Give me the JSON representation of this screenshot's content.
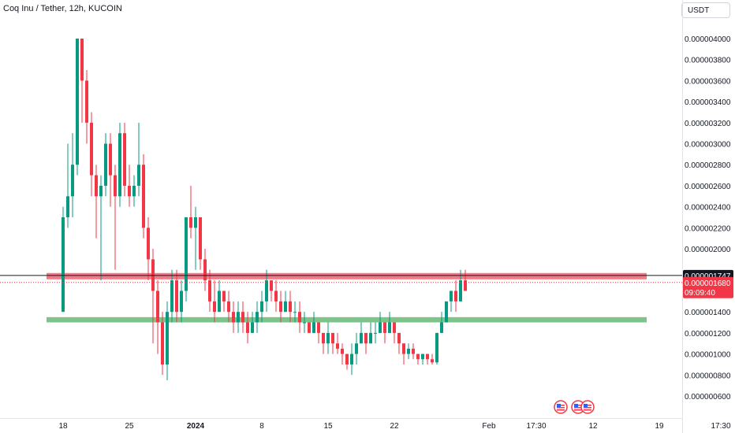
{
  "header": {
    "title": "Coq Inu / Tether, 12h, KUCOIN",
    "currency_label": "USDT"
  },
  "colors": {
    "up": "#089981",
    "down": "#f23645",
    "resistance_zone": "#f07a86",
    "support_zone": "#7cc48a",
    "last_price_line": "#131722",
    "current_price": "#f23645"
  },
  "chart_data": {
    "type": "candlestick",
    "title": "Coq Inu / Tether, 12h, KUCOIN",
    "xlabel": "",
    "ylabel": "",
    "ylim": [
      5e-07,
      4.25e-06
    ],
    "y_ticks": [
      "0.000004000",
      "0.000003800",
      "0.000003600",
      "0.000003400",
      "0.000003200",
      "0.000003000",
      "0.000002800",
      "0.000002600",
      "0.000002400",
      "0.000002200",
      "0.000002000",
      "0.000001400",
      "0.000001200",
      "0.000001000",
      "0.000000800",
      "0.000000600"
    ],
    "x_ticks": [
      {
        "label": "18",
        "index": 0
      },
      {
        "label": "25",
        "index": 14
      },
      {
        "label": "2024",
        "index": 28,
        "bold": true
      },
      {
        "label": "8",
        "index": 42
      },
      {
        "label": "15",
        "index": 56
      },
      {
        "label": "22",
        "index": 70
      },
      {
        "label": "Feb",
        "index": 90
      },
      {
        "label": "17:30",
        "index": 100
      },
      {
        "label": "12",
        "index": 112
      },
      {
        "label": "19",
        "index": 126
      },
      {
        "label": "17:30",
        "index": 139
      }
    ],
    "grid": false,
    "candles": [
      [
        1.4e-06,
        2.3e-06,
        2.4e-06,
        1.4e-06
      ],
      [
        2.3e-06,
        2.5e-06,
        3e-06,
        2.2e-06
      ],
      [
        2.5e-06,
        2.8e-06,
        3.1e-06,
        2.3e-06
      ],
      [
        2.8e-06,
        4e-06,
        4e-06,
        2.7e-06
      ],
      [
        4e-06,
        3.6e-06,
        4e-06,
        3.2e-06
      ],
      [
        3.6e-06,
        3.2e-06,
        3.7e-06,
        3e-06
      ],
      [
        3.2e-06,
        2.7e-06,
        3.3e-06,
        2.5e-06
      ],
      [
        2.7e-06,
        2.5e-06,
        2.8e-06,
        2.1e-06
      ],
      [
        2.5e-06,
        2.6e-06,
        2.7e-06,
        1.7e-06
      ],
      [
        2.6e-06,
        3e-06,
        3.1e-06,
        2.5e-06
      ],
      [
        3e-06,
        2.7e-06,
        3.1e-06,
        2.4e-06
      ],
      [
        2.7e-06,
        2.5e-06,
        2.8e-06,
        1.8e-06
      ],
      [
        2.5e-06,
        3.1e-06,
        3.2e-06,
        2.4e-06
      ],
      [
        3.1e-06,
        2.6e-06,
        3.2e-06,
        2.5e-06
      ],
      [
        2.6e-06,
        2.5e-06,
        2.8e-06,
        2.4e-06
      ],
      [
        2.5e-06,
        2.6e-06,
        2.7e-06,
        2.4e-06
      ],
      [
        2.6e-06,
        2.8e-06,
        3.2e-06,
        2.5e-06
      ],
      [
        2.8e-06,
        2.2e-06,
        2.9e-06,
        2.1e-06
      ],
      [
        2.2e-06,
        1.9e-06,
        2.3e-06,
        1.7e-06
      ],
      [
        1.9e-06,
        1.6e-06,
        2e-06,
        1.1e-06
      ],
      [
        1.6e-06,
        1.3e-06,
        1.7e-06,
        1e-06
      ],
      [
        1.3e-06,
        9e-07,
        1.4e-06,
        8e-07
      ],
      [
        9e-07,
        1.4e-06,
        1.5e-06,
        7.5e-07
      ],
      [
        1.4e-06,
        1.7e-06,
        1.8e-06,
        1.3e-06
      ],
      [
        1.7e-06,
        1.4e-06,
        1.8e-06,
        1.3e-06
      ],
      [
        1.4e-06,
        1.6e-06,
        1.7e-06,
        1.3e-06
      ],
      [
        1.6e-06,
        2.3e-06,
        2.3e-06,
        1.5e-06
      ],
      [
        2.3e-06,
        2.2e-06,
        2.6e-06,
        2.1e-06
      ],
      [
        2.2e-06,
        2.3e-06,
        2.4e-06,
        1.8e-06
      ],
      [
        2.3e-06,
        1.9e-06,
        2.3e-06,
        1.8e-06
      ],
      [
        1.9e-06,
        1.7e-06,
        2e-06,
        1.6e-06
      ],
      [
        1.7e-06,
        1.5e-06,
        1.8e-06,
        1.4e-06
      ],
      [
        1.5e-06,
        1.4e-06,
        1.7e-06,
        1.3e-06
      ],
      [
        1.4e-06,
        1.6e-06,
        1.7e-06,
        1.4e-06
      ],
      [
        1.6e-06,
        1.5e-06,
        1.6e-06,
        1.4e-06
      ],
      [
        1.5e-06,
        1.4e-06,
        1.6e-06,
        1.3e-06
      ],
      [
        1.4e-06,
        1.3e-06,
        1.5e-06,
        1.2e-06
      ],
      [
        1.3e-06,
        1.4e-06,
        1.5e-06,
        1.2e-06
      ],
      [
        1.4e-06,
        1.3e-06,
        1.5e-06,
        1.2e-06
      ],
      [
        1.3e-06,
        1.2e-06,
        1.4e-06,
        1.1e-06
      ],
      [
        1.2e-06,
        1.3e-06,
        1.4e-06,
        1.2e-06
      ],
      [
        1.3e-06,
        1.4e-06,
        1.5e-06,
        1.2e-06
      ],
      [
        1.4e-06,
        1.5e-06,
        1.6e-06,
        1.3e-06
      ],
      [
        1.5e-06,
        1.7e-06,
        1.8e-06,
        1.4e-06
      ],
      [
        1.7e-06,
        1.6e-06,
        1.7e-06,
        1.5e-06
      ],
      [
        1.6e-06,
        1.5e-06,
        1.7e-06,
        1.4e-06
      ],
      [
        1.5e-06,
        1.4e-06,
        1.6e-06,
        1.3e-06
      ],
      [
        1.4e-06,
        1.5e-06,
        1.6e-06,
        1.4e-06
      ],
      [
        1.5e-06,
        1.4e-06,
        1.6e-06,
        1.3e-06
      ],
      [
        1.4e-06,
        1.4e-06,
        1.5e-06,
        1.3e-06
      ],
      [
        1.4e-06,
        1.3e-06,
        1.5e-06,
        1.2e-06
      ],
      [
        1.3e-06,
        1.3e-06,
        1.4e-06,
        1.2e-06
      ],
      [
        1.3e-06,
        1.2e-06,
        1.3e-06,
        1.2e-06
      ],
      [
        1.2e-06,
        1.3e-06,
        1.4e-06,
        1.2e-06
      ],
      [
        1.3e-06,
        1.2e-06,
        1.3e-06,
        1.1e-06
      ],
      [
        1.2e-06,
        1.1e-06,
        1.2e-06,
        1e-06
      ],
      [
        1.1e-06,
        1.2e-06,
        1.3e-06,
        1e-06
      ],
      [
        1.2e-06,
        1.1e-06,
        1.2e-06,
        1e-06
      ],
      [
        1.1e-06,
        1.05e-06,
        1.2e-06,
        1e-06
      ],
      [
        1.05e-06,
        1e-06,
        1.1e-06,
        9e-07
      ],
      [
        1e-06,
        9e-07,
        1e-06,
        8.5e-07
      ],
      [
        9e-07,
        1e-06,
        1.1e-06,
        8e-07
      ],
      [
        1e-06,
        1.1e-06,
        1.2e-06,
        9e-07
      ],
      [
        1.1e-06,
        1.2e-06,
        1.3e-06,
        1.1e-06
      ],
      [
        1.2e-06,
        1.1e-06,
        1.2e-06,
        1e-06
      ],
      [
        1.1e-06,
        1.2e-06,
        1.3e-06,
        1.1e-06
      ],
      [
        1.2e-06,
        1.2e-06,
        1.3e-06,
        1.1e-06
      ],
      [
        1.2e-06,
        1.3e-06,
        1.4e-06,
        1.2e-06
      ],
      [
        1.3e-06,
        1.2e-06,
        1.3e-06,
        1.1e-06
      ],
      [
        1.2e-06,
        1.3e-06,
        1.4e-06,
        1.2e-06
      ],
      [
        1.3e-06,
        1.2e-06,
        1.3e-06,
        1.1e-06
      ],
      [
        1.2e-06,
        1.1e-06,
        1.2e-06,
        1e-06
      ],
      [
        1.1e-06,
        1e-06,
        1.1e-06,
        9e-07
      ],
      [
        1e-06,
        1.05e-06,
        1.1e-06,
        9.5e-07
      ],
      [
        1.05e-06,
        1e-06,
        1.1e-06,
        9.5e-07
      ],
      [
        1e-06,
        9.5e-07,
        1e-06,
        9e-07
      ],
      [
        9.5e-07,
        1e-06,
        1e-06,
        9e-07
      ],
      [
        1e-06,
        9.5e-07,
        1e-06,
        9e-07
      ],
      [
        9.5e-07,
        9.2e-07,
        1e-06,
        9e-07
      ],
      [
        9.2e-07,
        1.2e-06,
        1.2e-06,
        9e-07
      ],
      [
        1.2e-06,
        1.3e-06,
        1.4e-06,
        1.2e-06
      ],
      [
        1.3e-06,
        1.5e-06,
        1.5e-06,
        1.3e-06
      ],
      [
        1.5e-06,
        1.6e-06,
        1.6e-06,
        1.4e-06
      ],
      [
        1.6e-06,
        1.5e-06,
        1.7e-06,
        1.4e-06
      ],
      [
        1.5e-06,
        1.7e-06,
        1.8e-06,
        1.5e-06
      ],
      [
        1.7e-06,
        1.6e-06,
        1.8e-06,
        1.6e-06
      ]
    ],
    "zones": [
      {
        "label": "",
        "from": 1.71e-06,
        "to": 1.77e-06,
        "color": "#f07a86"
      },
      {
        "label": "",
        "from": 1.3e-06,
        "to": 1.35e-06,
        "color": "#7cc48a"
      }
    ],
    "last_price": {
      "label": "0.000001747",
      "value": 1.747e-06
    },
    "current_price": {
      "label": "0.000001680",
      "countdown": "09:09:40",
      "value": 1.68e-06
    }
  }
}
